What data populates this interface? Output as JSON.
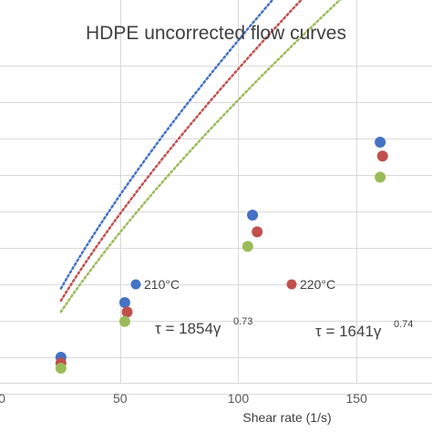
{
  "chart_data": {
    "type": "scatter",
    "title": "HDPE uncorrected flow curves",
    "xlabel": "Shear rate (1/s)",
    "ylabel": "",
    "xlim": [
      0,
      185
    ],
    "ylim": [
      0,
      55000
    ],
    "x_ticks": [
      0,
      50,
      100,
      150
    ],
    "x_tick_labels": [
      "0",
      "50",
      "100",
      "150"
    ],
    "y_gridlines": [
      5000,
      10000,
      15000,
      20000,
      25000,
      30000,
      35000,
      40000,
      45000,
      50000
    ],
    "grid": true,
    "series": [
      {
        "name": "210°C",
        "color": "#4472C4",
        "x": [
          25,
          52,
          106,
          160
        ],
        "y": [
          10000,
          17500,
          29500,
          39500
        ],
        "trendline": {
          "coef": 1854,
          "exp": 0.73
        }
      },
      {
        "name": "220°C",
        "color": "#C0504D",
        "x": [
          25,
          53,
          108,
          161
        ],
        "y": [
          9200,
          16200,
          27200,
          37600
        ],
        "trendline": {
          "coef": 1641,
          "exp": 0.74
        }
      },
      {
        "name": "",
        "color": "#9BBB59",
        "x": [
          25,
          52,
          104,
          160
        ],
        "y": [
          8500,
          14900,
          25200,
          34700
        ],
        "trendline": {
          "coef": 1500,
          "exp": 0.74
        }
      }
    ],
    "equations": [
      {
        "base": "τ = 1854γ",
        "exp": "0.73"
      },
      {
        "base": "τ = 1641γ",
        "exp": "0.74"
      }
    ]
  }
}
